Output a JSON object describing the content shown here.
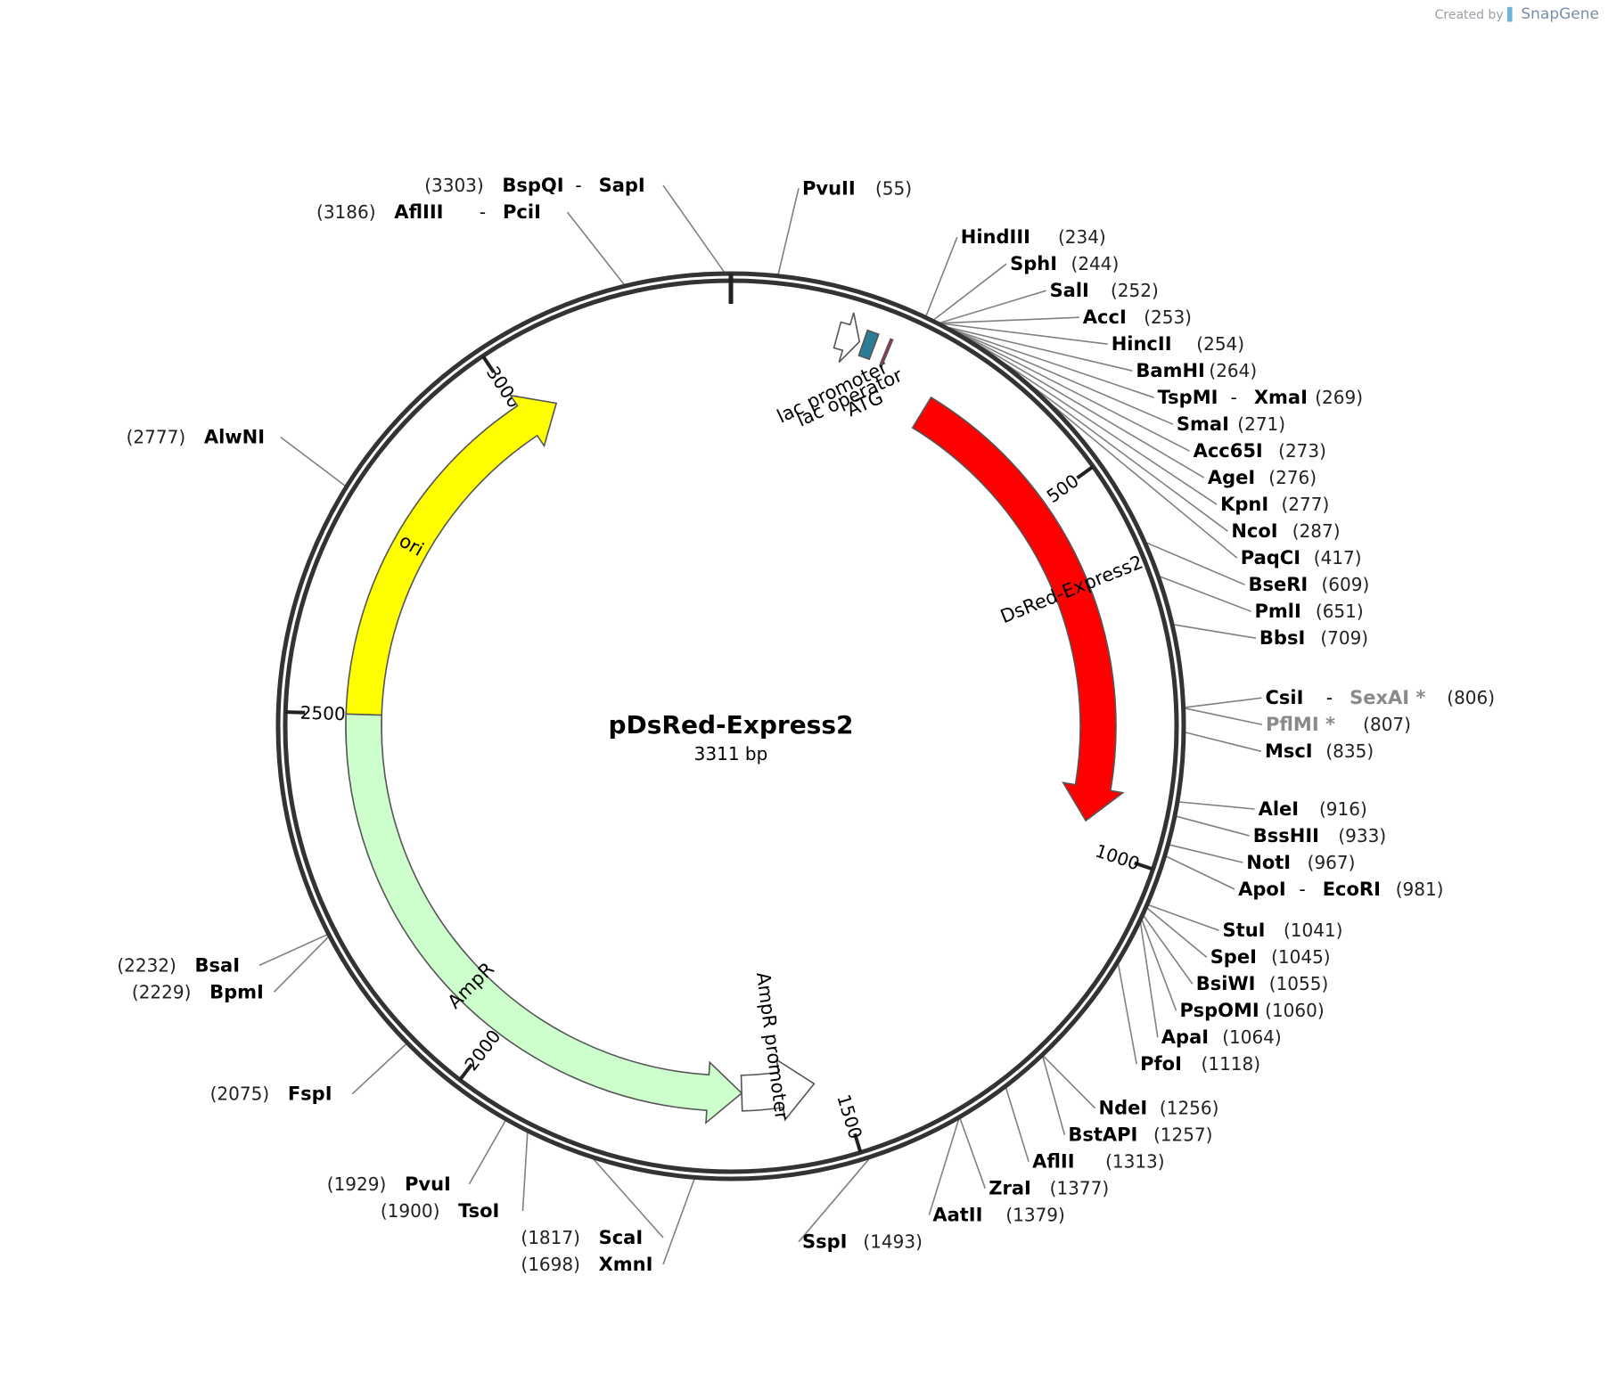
{
  "credit": {
    "prefix": "Created by",
    "brand": "SnapGene"
  },
  "plasmid": {
    "name": "pDsRed-Express2",
    "size_label": "3311 bp",
    "length": 3311
  },
  "ticks": [
    {
      "pos": 500,
      "label": "500"
    },
    {
      "pos": 1000,
      "label": "1000"
    },
    {
      "pos": 1500,
      "label": "1500"
    },
    {
      "pos": 2000,
      "label": "2000"
    },
    {
      "pos": 2500,
      "label": "2500"
    },
    {
      "pos": 3000,
      "label": "3000"
    }
  ],
  "features": [
    {
      "name": "DsRed-Express2",
      "start": 288,
      "end": 965,
      "color": "#ff0000",
      "text_color": "#ffffff",
      "direction": 1
    },
    {
      "name": "ori",
      "start": 2460,
      "end": 3050,
      "color": "#ffff00",
      "text_color": "#000000",
      "direction": 1
    },
    {
      "name": "AmpR",
      "start": 1640,
      "end": 2500,
      "color": "#ccffcc",
      "text_color": "#000000",
      "direction": -1
    },
    {
      "name": "AmpR promoter",
      "start": 1535,
      "end": 1640,
      "color": "#ffffff",
      "text_color": "#000000",
      "direction": -1
    },
    {
      "name": "lac promoter",
      "start": 140,
      "end": 170,
      "color": "#ffffff",
      "text_color": "#000000",
      "direction": 1
    },
    {
      "name": "lac operator",
      "start": 175,
      "end": 190,
      "color": "#2b7d96",
      "text_color": "#000000",
      "direction": 0
    },
    {
      "name": "ATG",
      "start": 206,
      "end": 209,
      "color": "#c2185b",
      "text_color": "#000000",
      "direction": 0
    }
  ],
  "sites": [
    {
      "parts": [
        [
          "(3303)",
          "pos"
        ],
        [
          "BspQI",
          "name"
        ],
        [
          "-",
          "dash"
        ],
        [
          "SapI",
          "name"
        ]
      ],
      "pos": 3303
    },
    {
      "parts": [
        [
          "PvuII",
          "name"
        ],
        [
          "(55)",
          "pos"
        ]
      ],
      "pos": 55
    },
    {
      "parts": [
        [
          "(3186)",
          "pos"
        ],
        [
          "AflIII",
          "name"
        ],
        [
          "-",
          "dash"
        ],
        [
          "PciI",
          "name"
        ]
      ],
      "pos": 3186
    },
    {
      "parts": [
        [
          "HindIII",
          "name"
        ],
        [
          "(234)",
          "pos"
        ]
      ],
      "pos": 234
    },
    {
      "parts": [
        [
          "SphI",
          "name"
        ],
        [
          "(244)",
          "pos"
        ]
      ],
      "pos": 244
    },
    {
      "parts": [
        [
          "SalI",
          "name"
        ],
        [
          "(252)",
          "pos"
        ]
      ],
      "pos": 252
    },
    {
      "parts": [
        [
          "AccI",
          "name"
        ],
        [
          "(253)",
          "pos"
        ]
      ],
      "pos": 253
    },
    {
      "parts": [
        [
          "HincII",
          "name"
        ],
        [
          "(254)",
          "pos"
        ]
      ],
      "pos": 254
    },
    {
      "parts": [
        [
          "BamHI",
          "name"
        ],
        [
          "(264)",
          "pos"
        ]
      ],
      "pos": 264
    },
    {
      "parts": [
        [
          "TspMI",
          "name"
        ],
        [
          "-",
          "dash"
        ],
        [
          "XmaI",
          "name"
        ],
        [
          "(269)",
          "pos"
        ]
      ],
      "pos": 269
    },
    {
      "parts": [
        [
          "SmaI",
          "name"
        ],
        [
          "(271)",
          "pos"
        ]
      ],
      "pos": 271
    },
    {
      "parts": [
        [
          "Acc65I",
          "name"
        ],
        [
          "(273)",
          "pos"
        ]
      ],
      "pos": 273
    },
    {
      "parts": [
        [
          "AgeI",
          "name"
        ],
        [
          "(276)",
          "pos"
        ]
      ],
      "pos": 276
    },
    {
      "parts": [
        [
          "KpnI",
          "name"
        ],
        [
          "(277)",
          "pos"
        ]
      ],
      "pos": 277
    },
    {
      "parts": [
        [
          "NcoI",
          "name"
        ],
        [
          "(287)",
          "pos"
        ]
      ],
      "pos": 287
    },
    {
      "parts": [
        [
          "PaqCI",
          "name"
        ],
        [
          "(417)",
          "pos"
        ]
      ],
      "pos": 417
    },
    {
      "parts": [
        [
          "BseRI",
          "name"
        ],
        [
          "(609)",
          "pos"
        ]
      ],
      "pos": 609
    },
    {
      "parts": [
        [
          "PmlI",
          "name"
        ],
        [
          "(651)",
          "pos"
        ]
      ],
      "pos": 651
    },
    {
      "parts": [
        [
          "BbsI",
          "name"
        ],
        [
          "(709)",
          "pos"
        ]
      ],
      "pos": 709
    },
    {
      "parts": [
        [
          "CsiI",
          "name"
        ],
        [
          "-",
          "dash"
        ],
        [
          "SexAI *",
          "grey"
        ],
        [
          "(806)",
          "pos"
        ]
      ],
      "pos": 806
    },
    {
      "parts": [
        [
          "PflMI *",
          "grey"
        ],
        [
          "(807)",
          "pos"
        ]
      ],
      "pos": 807
    },
    {
      "parts": [
        [
          "MscI",
          "name"
        ],
        [
          "(835)",
          "pos"
        ]
      ],
      "pos": 835
    },
    {
      "parts": [
        [
          "AleI",
          "name"
        ],
        [
          "(916)",
          "pos"
        ]
      ],
      "pos": 916
    },
    {
      "parts": [
        [
          "BssHII",
          "name"
        ],
        [
          "(933)",
          "pos"
        ]
      ],
      "pos": 933
    },
    {
      "parts": [
        [
          "NotI",
          "name"
        ],
        [
          "(967)",
          "pos"
        ]
      ],
      "pos": 967
    },
    {
      "parts": [
        [
          "ApoI",
          "name"
        ],
        [
          "-",
          "dash"
        ],
        [
          "EcoRI",
          "name"
        ],
        [
          "(981)",
          "pos"
        ]
      ],
      "pos": 981
    },
    {
      "parts": [
        [
          "StuI",
          "name"
        ],
        [
          "(1041)",
          "pos"
        ]
      ],
      "pos": 1041
    },
    {
      "parts": [
        [
          "SpeI",
          "name"
        ],
        [
          "(1045)",
          "pos"
        ]
      ],
      "pos": 1045
    },
    {
      "parts": [
        [
          "BsiWI",
          "name"
        ],
        [
          "(1055)",
          "pos"
        ]
      ],
      "pos": 1055
    },
    {
      "parts": [
        [
          "PspOMI",
          "name"
        ],
        [
          "(1060)",
          "pos"
        ]
      ],
      "pos": 1060
    },
    {
      "parts": [
        [
          "ApaI",
          "name"
        ],
        [
          "(1064)",
          "pos"
        ]
      ],
      "pos": 1064
    },
    {
      "parts": [
        [
          "PfoI",
          "name"
        ],
        [
          "(1118)",
          "pos"
        ]
      ],
      "pos": 1118
    },
    {
      "parts": [
        [
          "NdeI",
          "name"
        ],
        [
          "(1256)",
          "pos"
        ]
      ],
      "pos": 1256
    },
    {
      "parts": [
        [
          "BstAPI",
          "name"
        ],
        [
          "(1257)",
          "pos"
        ]
      ],
      "pos": 1257
    },
    {
      "parts": [
        [
          "AflII",
          "name"
        ],
        [
          "(1313)",
          "pos"
        ]
      ],
      "pos": 1313
    },
    {
      "parts": [
        [
          "ZraI",
          "name"
        ],
        [
          "(1377)",
          "pos"
        ]
      ],
      "pos": 1377
    },
    {
      "parts": [
        [
          "AatII",
          "name"
        ],
        [
          "(1379)",
          "pos"
        ]
      ],
      "pos": 1379
    },
    {
      "parts": [
        [
          "SspI",
          "name"
        ],
        [
          "(1493)",
          "pos"
        ]
      ],
      "pos": 1493
    },
    {
      "parts": [
        [
          "(1698)",
          "pos"
        ],
        [
          "XmnI",
          "name"
        ]
      ],
      "pos": 1698
    },
    {
      "parts": [
        [
          "(1817)",
          "pos"
        ],
        [
          "ScaI",
          "name"
        ]
      ],
      "pos": 1817
    },
    {
      "parts": [
        [
          "(1900)",
          "pos"
        ],
        [
          "TsoI",
          "name"
        ]
      ],
      "pos": 1900
    },
    {
      "parts": [
        [
          "(1929)",
          "pos"
        ],
        [
          "PvuI",
          "name"
        ]
      ],
      "pos": 1929
    },
    {
      "parts": [
        [
          "(2075)",
          "pos"
        ],
        [
          "FspI",
          "name"
        ]
      ],
      "pos": 2075
    },
    {
      "parts": [
        [
          "(2229)",
          "pos"
        ],
        [
          "BpmI",
          "name"
        ]
      ],
      "pos": 2229
    },
    {
      "parts": [
        [
          "(2232)",
          "pos"
        ],
        [
          "BsaI",
          "name"
        ]
      ],
      "pos": 2232
    },
    {
      "parts": [
        [
          "(2777)",
          "pos"
        ],
        [
          "AlwNI",
          "name"
        ]
      ],
      "pos": 2777
    }
  ]
}
